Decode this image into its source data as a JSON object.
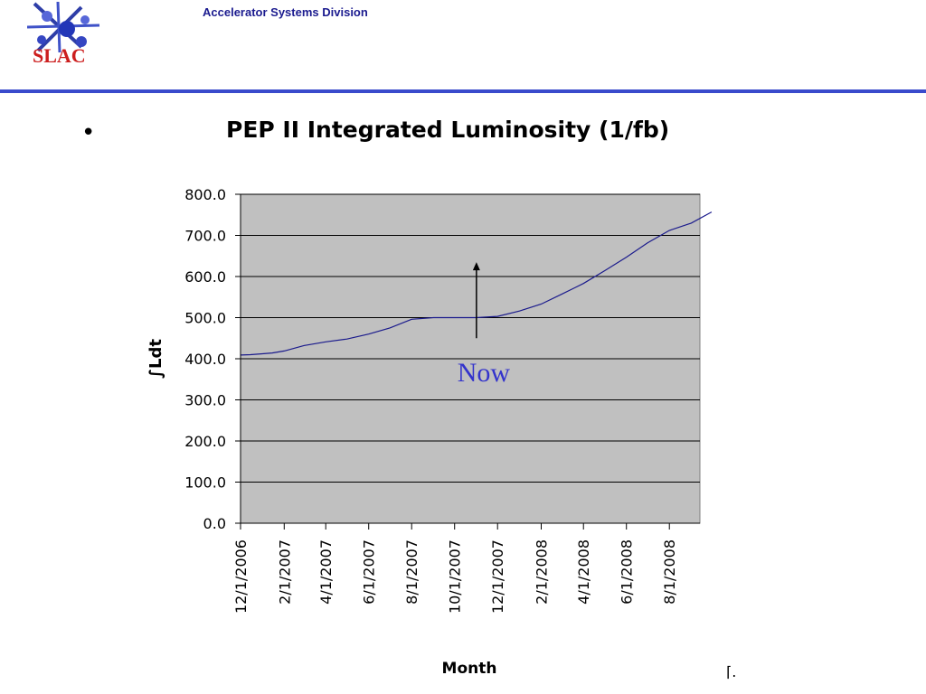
{
  "header": {
    "division": "Accelerator Systems Division",
    "logo_text": "SLAC",
    "rule_color": "#3a4bcc"
  },
  "slide": {
    "bullet": "•",
    "footer_mark": "⌈."
  },
  "chart_data": {
    "type": "line",
    "title": "PEP II Integrated Luminosity (1/fb)",
    "xlabel": "Month",
    "ylabel": "∫Ldt",
    "ylim": [
      0,
      800
    ],
    "yticks": [
      "0.0",
      "100.0",
      "200.0",
      "300.0",
      "400.0",
      "500.0",
      "600.0",
      "700.0",
      "800.0"
    ],
    "xtick_labels": [
      "12/1/2006",
      "2/1/2007",
      "4/1/2007",
      "6/1/2007",
      "8/1/2007",
      "10/1/2007",
      "12/1/2007",
      "2/1/2008",
      "4/1/2008",
      "6/1/2008",
      "8/1/2008"
    ],
    "grid": true,
    "plot_background": "#c0c0c0",
    "line_color": "#1a1a8c",
    "series": [
      {
        "name": "",
        "x": [
          "2006-12-01",
          "2006-12-15",
          "2007-01-01",
          "2007-01-15",
          "2007-02-01",
          "2007-03-01",
          "2007-04-01",
          "2007-05-01",
          "2007-06-01",
          "2007-07-01",
          "2007-08-01",
          "2007-09-01",
          "2007-10-01",
          "2007-11-01",
          "2007-12-01",
          "2008-01-01",
          "2008-02-01",
          "2008-03-01",
          "2008-04-01",
          "2008-05-01",
          "2008-06-01",
          "2008-07-01",
          "2008-08-01",
          "2008-09-01",
          "2008-09-30"
        ],
        "y": [
          409,
          410,
          412,
          414,
          419,
          432,
          441,
          448,
          460,
          475,
          496,
          500,
          500,
          500,
          503,
          516,
          533,
          557,
          583,
          614,
          647,
          682,
          712,
          730,
          757
        ]
      }
    ],
    "annotation": {
      "text": "Now",
      "x": "2007-11-01",
      "y_from": 450,
      "y_to": 635,
      "color": "#3333cc"
    }
  }
}
